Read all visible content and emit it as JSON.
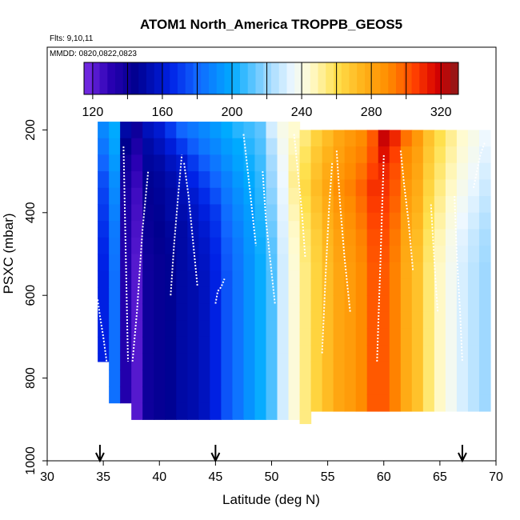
{
  "chart_data": {
    "type": "heatmap",
    "title": "ATOM1 North_America TROPPB_GEOS5",
    "flights_label": "Flts: 9,10,11",
    "mmdd_label": "MMDD: 0820,0822,0823",
    "xlabel": "Latitude (deg N)",
    "ylabel": "PSXC (mbar)",
    "xlim": [
      30,
      70
    ],
    "ylim": [
      1000,
      0
    ],
    "x_ticks": [
      30,
      35,
      40,
      45,
      50,
      55,
      60,
      65,
      70
    ],
    "y_ticks": [
      200,
      400,
      600,
      800,
      1000
    ],
    "colorbar": {
      "range": [
        115,
        330
      ],
      "ticks": [
        120,
        160,
        200,
        240,
        280,
        320
      ],
      "stops": [
        {
          "v": 115,
          "c": "#7a2ee6"
        },
        {
          "v": 130,
          "c": "#2a00b3"
        },
        {
          "v": 145,
          "c": "#00008f"
        },
        {
          "v": 165,
          "c": "#0022e6"
        },
        {
          "v": 180,
          "c": "#1166ff"
        },
        {
          "v": 200,
          "c": "#00aaff"
        },
        {
          "v": 220,
          "c": "#99d6ff"
        },
        {
          "v": 235,
          "c": "#eef8ff"
        },
        {
          "v": 245,
          "c": "#fffbd0"
        },
        {
          "v": 260,
          "c": "#ffe04d"
        },
        {
          "v": 275,
          "c": "#ffb31a"
        },
        {
          "v": 290,
          "c": "#ff8c00"
        },
        {
          "v": 305,
          "c": "#ff4000"
        },
        {
          "v": 318,
          "c": "#d60000"
        },
        {
          "v": 330,
          "c": "#8c1a1a"
        }
      ]
    },
    "arrows_latitude": [
      34.7,
      45,
      67
    ],
    "grid": false,
    "columns": [
      {
        "lat": 35.0,
        "p_top": 180,
        "p_bot": 760,
        "values": [
          190,
          185,
          180,
          175,
          172,
          170,
          168,
          166,
          165,
          164,
          164,
          164,
          164,
          164,
          164
        ]
      },
      {
        "lat": 36.0,
        "p_top": 180,
        "p_bot": 860,
        "values": [
          200,
          198,
          195,
          192,
          190,
          188,
          186,
          185,
          184,
          183,
          183,
          183,
          183,
          183,
          183,
          183,
          183
        ]
      },
      {
        "lat": 37.0,
        "p_top": 180,
        "p_bot": 860,
        "values": [
          150,
          145,
          140,
          138,
          136,
          135,
          134,
          133,
          133,
          133,
          133,
          133,
          133,
          133,
          133,
          133,
          133
        ]
      },
      {
        "lat": 38.0,
        "p_top": 180,
        "p_bot": 910,
        "values": [
          140,
          135,
          130,
          128,
          126,
          125,
          124,
          123,
          122,
          122,
          122,
          122,
          122,
          122,
          122,
          122,
          122,
          122
        ]
      },
      {
        "lat": 39.0,
        "p_top": 180,
        "p_bot": 910,
        "values": [
          155,
          150,
          148,
          146,
          144,
          143,
          142,
          141,
          140,
          140,
          140,
          140,
          140,
          140,
          140,
          140,
          140,
          140
        ]
      },
      {
        "lat": 40.0,
        "p_top": 180,
        "p_bot": 910,
        "values": [
          160,
          155,
          150,
          148,
          147,
          146,
          145,
          144,
          143,
          143,
          143,
          143,
          143,
          143,
          143,
          143,
          143,
          143
        ]
      },
      {
        "lat": 41.0,
        "p_top": 180,
        "p_bot": 910,
        "values": [
          170,
          162,
          156,
          152,
          150,
          150,
          148,
          147,
          146,
          146,
          146,
          146,
          146,
          146,
          146,
          146,
          146,
          146
        ]
      },
      {
        "lat": 42.0,
        "p_top": 180,
        "p_bot": 910,
        "values": [
          180,
          170,
          160,
          156,
          154,
          152,
          150,
          150,
          150,
          150,
          150,
          150,
          150,
          150,
          150,
          150,
          150,
          150
        ]
      },
      {
        "lat": 43.0,
        "p_top": 180,
        "p_bot": 910,
        "values": [
          185,
          178,
          170,
          165,
          160,
          157,
          155,
          154,
          153,
          152,
          152,
          152,
          152,
          152,
          152,
          152,
          152,
          152
        ]
      },
      {
        "lat": 44.0,
        "p_top": 180,
        "p_bot": 910,
        "values": [
          190,
          185,
          178,
          172,
          167,
          163,
          160,
          158,
          157,
          156,
          156,
          156,
          156,
          156,
          156,
          156,
          156,
          156
        ]
      },
      {
        "lat": 45.0,
        "p_top": 180,
        "p_bot": 910,
        "values": [
          195,
          190,
          185,
          180,
          175,
          170,
          168,
          166,
          165,
          164,
          164,
          164,
          164,
          164,
          164,
          164,
          164,
          164
        ]
      },
      {
        "lat": 46.0,
        "p_top": 180,
        "p_bot": 910,
        "values": [
          200,
          196,
          192,
          188,
          185,
          182,
          180,
          178,
          177,
          176,
          176,
          176,
          176,
          176,
          176,
          176,
          176,
          176
        ]
      },
      {
        "lat": 47.0,
        "p_top": 180,
        "p_bot": 910,
        "values": [
          205,
          200,
          198,
          195,
          192,
          190,
          188,
          186,
          185,
          184,
          184,
          184,
          184,
          184,
          184,
          184,
          184,
          184
        ]
      },
      {
        "lat": 48.0,
        "p_top": 180,
        "p_bot": 910,
        "values": [
          208,
          205,
          202,
          200,
          198,
          196,
          195,
          194,
          193,
          193,
          193,
          193,
          193,
          193,
          193,
          193,
          193,
          193
        ]
      },
      {
        "lat": 49.0,
        "p_top": 180,
        "p_bot": 910,
        "values": [
          212,
          210,
          208,
          206,
          205,
          204,
          203,
          202,
          201,
          201,
          201,
          201,
          201,
          201,
          201,
          201,
          201,
          201
        ]
      },
      {
        "lat": 50.0,
        "p_top": 180,
        "p_bot": 910,
        "values": [
          230,
          225,
          222,
          220,
          218,
          216,
          214,
          212,
          211,
          210,
          210,
          210,
          210,
          210,
          210,
          210,
          210,
          210
        ]
      },
      {
        "lat": 51.0,
        "p_top": 180,
        "p_bot": 910,
        "values": [
          240,
          238,
          236,
          235,
          234,
          233,
          232,
          231,
          230,
          230,
          230,
          230,
          230,
          230,
          230,
          230,
          230,
          230
        ]
      },
      {
        "lat": 52.0,
        "p_top": 180,
        "p_bot": 910,
        "values": [
          245,
          248,
          250,
          252,
          250,
          248,
          246,
          245,
          244,
          243,
          243,
          243,
          243,
          243,
          243,
          243,
          243,
          243
        ]
      },
      {
        "lat": 53.0,
        "p_top": 200,
        "p_bot": 910,
        "values": [
          255,
          258,
          260,
          262,
          260,
          258,
          256,
          255,
          254,
          254,
          254,
          254,
          254,
          254,
          254,
          254,
          254,
          254
        ]
      },
      {
        "lat": 54.0,
        "p_top": 200,
        "p_bot": 910,
        "values": [
          265,
          268,
          270,
          272,
          270,
          268,
          266,
          265,
          264,
          264,
          264,
          264,
          264,
          264,
          264,
          264,
          264
        ]
      },
      {
        "lat": 55.0,
        "p_top": 200,
        "p_bot": 910,
        "values": [
          272,
          275,
          278,
          280,
          278,
          276,
          274,
          273,
          272,
          272,
          272,
          272,
          272,
          272,
          272,
          272,
          272
        ]
      },
      {
        "lat": 56.0,
        "p_top": 200,
        "p_bot": 910,
        "values": [
          280,
          282,
          285,
          288,
          286,
          284,
          282,
          281,
          280,
          280,
          280,
          280,
          280,
          280,
          280,
          280,
          280
        ]
      },
      {
        "lat": 57.0,
        "p_top": 200,
        "p_bot": 910,
        "values": [
          285,
          288,
          290,
          292,
          290,
          288,
          286,
          285,
          284,
          284,
          284,
          284,
          284,
          284,
          284,
          284,
          284
        ]
      },
      {
        "lat": 58.0,
        "p_top": 200,
        "p_bot": 910,
        "values": [
          290,
          292,
          295,
          298,
          296,
          294,
          292,
          291,
          290,
          290,
          290,
          290,
          290,
          290,
          290,
          290,
          290
        ]
      },
      {
        "lat": 59.0,
        "p_top": 200,
        "p_bot": 910,
        "values": [
          300,
          302,
          305,
          308,
          306,
          304,
          302,
          301,
          300,
          300,
          300,
          300,
          300,
          300,
          300,
          300,
          300
        ]
      },
      {
        "lat": 60.0,
        "p_top": 200,
        "p_bot": 910,
        "values": [
          320,
          315,
          310,
          308,
          306,
          304,
          302,
          301,
          300,
          300,
          300,
          300,
          300,
          300,
          300,
          300,
          300
        ]
      },
      {
        "lat": 61.0,
        "p_top": 200,
        "p_bot": 910,
        "values": [
          310,
          305,
          302,
          300,
          298,
          296,
          294,
          293,
          292,
          292,
          292,
          292,
          292,
          292,
          292,
          292,
          292
        ]
      },
      {
        "lat": 62.0,
        "p_top": 200,
        "p_bot": 910,
        "values": [
          295,
          290,
          288,
          285,
          283,
          281,
          280,
          279,
          278,
          278,
          278,
          278,
          278,
          278,
          278,
          278,
          278
        ]
      },
      {
        "lat": 63.0,
        "p_top": 200,
        "p_bot": 910,
        "values": [
          285,
          282,
          280,
          278,
          276,
          274,
          272,
          271,
          270,
          270,
          270,
          270,
          270,
          270,
          270,
          270,
          270
        ]
      },
      {
        "lat": 64.0,
        "p_top": 200,
        "p_bot": 910,
        "values": [
          270,
          268,
          266,
          264,
          262,
          260,
          258,
          257,
          256,
          256,
          256,
          256,
          256,
          256,
          256,
          256,
          256
        ]
      },
      {
        "lat": 65.0,
        "p_top": 200,
        "p_bot": 910,
        "values": [
          260,
          258,
          256,
          254,
          252,
          250,
          248,
          247,
          246,
          246,
          246,
          246,
          246,
          246,
          246,
          246,
          246
        ]
      },
      {
        "lat": 66.0,
        "p_top": 200,
        "p_bot": 910,
        "values": [
          252,
          250,
          248,
          246,
          244,
          242,
          240,
          239,
          238,
          238,
          238,
          238,
          238,
          238,
          238,
          238,
          238
        ]
      },
      {
        "lat": 67.0,
        "p_top": 200,
        "p_bot": 910,
        "values": [
          245,
          243,
          241,
          239,
          237,
          235,
          233,
          232,
          231,
          231,
          231,
          231,
          231,
          231,
          231,
          231,
          231
        ]
      },
      {
        "lat": 68.0,
        "p_top": 200,
        "p_bot": 910,
        "values": [
          240,
          238,
          236,
          234,
          232,
          230,
          228,
          227,
          226,
          226,
          226,
          226,
          226,
          226,
          226,
          226,
          226
        ]
      },
      {
        "lat": 69.0,
        "p_top": 200,
        "p_bot": 910,
        "values": [
          235,
          233,
          231,
          229,
          227,
          225,
          223,
          222,
          221,
          221,
          221,
          221,
          221,
          221,
          221,
          221,
          221
        ]
      }
    ],
    "profile_lines": [
      {
        "lat": [
          34.5,
          34.7,
          35.0,
          35.3
        ],
        "p": [
          610,
          650,
          700,
          760
        ]
      },
      {
        "lat": [
          36.8,
          37.0,
          37.2
        ],
        "p": [
          240,
          500,
          760
        ]
      },
      {
        "lat": [
          37.6,
          38.0,
          38.5,
          39.0
        ],
        "p": [
          760,
          640,
          440,
          300
        ]
      },
      {
        "lat": [
          41.0,
          41.3,
          41.7,
          42.0
        ],
        "p": [
          600,
          480,
          350,
          260
        ]
      },
      {
        "lat": [
          42.2,
          42.6,
          43.0,
          43.4
        ],
        "p": [
          280,
          360,
          470,
          580
        ]
      },
      {
        "lat": [
          45.0,
          45.2,
          45.5,
          45.8
        ],
        "p": [
          620,
          590,
          580,
          560
        ]
      },
      {
        "lat": [
          47.5,
          47.8,
          48.2,
          48.6
        ],
        "p": [
          210,
          280,
          380,
          480
        ]
      },
      {
        "lat": [
          49.2,
          49.5,
          49.9,
          50.3
        ],
        "p": [
          300,
          420,
          520,
          620
        ]
      },
      {
        "lat": [
          52.0,
          52.3,
          52.7,
          53.0
        ],
        "p": [
          210,
          290,
          400,
          510
        ]
      },
      {
        "lat": [
          54.5,
          54.8,
          55.1,
          55.4
        ],
        "p": [
          740,
          560,
          400,
          280
        ]
      },
      {
        "lat": [
          55.8,
          56.1,
          56.5,
          57.0
        ],
        "p": [
          250,
          380,
          510,
          640
        ]
      },
      {
        "lat": [
          59.4,
          59.7,
          60.0
        ],
        "p": [
          760,
          520,
          260
        ]
      },
      {
        "lat": [
          61.5,
          61.8,
          62.2,
          62.6
        ],
        "p": [
          250,
          330,
          420,
          540
        ]
      },
      {
        "lat": [
          64.2,
          64.4,
          64.6,
          64.8
        ],
        "p": [
          380,
          470,
          560,
          640
        ]
      },
      {
        "lat": [
          66.3,
          66.5,
          66.8,
          67.0
        ],
        "p": [
          360,
          500,
          640,
          760
        ]
      },
      {
        "lat": [
          68.0,
          68.3,
          68.6,
          69.0
        ],
        "p": [
          340,
          300,
          260,
          230
        ]
      }
    ]
  }
}
